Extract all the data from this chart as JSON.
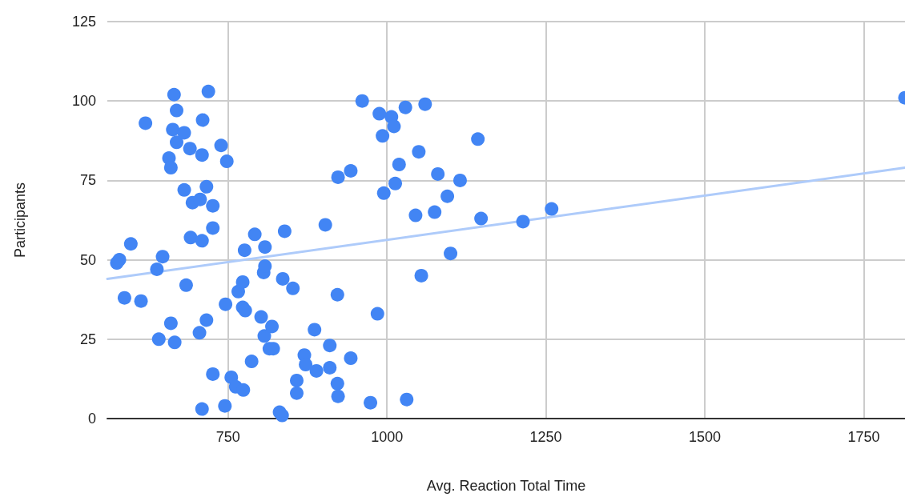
{
  "chart_data": {
    "type": "scatter",
    "xlabel": "Avg. Reaction Total Time",
    "ylabel": "Participants",
    "xlim": [
      560,
      1815
    ],
    "xticks": [
      750,
      1000,
      1250,
      1500,
      1750
    ],
    "ylim": [
      0,
      125
    ],
    "yticks": [
      0,
      25,
      50,
      75,
      100,
      125
    ],
    "grid": true,
    "series": [
      {
        "marker": "circle",
        "color": "#4285f4",
        "x": [
          575,
          579,
          587,
          597,
          613,
          620,
          638,
          641,
          647,
          657,
          660,
          660,
          665,
          663,
          669,
          669,
          666,
          681,
          681,
          684,
          690,
          691,
          694,
          705,
          706,
          709,
          710,
          709,
          709,
          716,
          716,
          719,
          726,
          726,
          726,
          739,
          746,
          745,
          748,
          755,
          762,
          766,
          773,
          773,
          774,
          777,
          776,
          787,
          792,
          802,
          806,
          808,
          808,
          807,
          815,
          819,
          821,
          831,
          835,
          836,
          839,
          852,
          858,
          858,
          870,
          872,
          886,
          889,
          903,
          910,
          910,
          922,
          922,
          923,
          923,
          943,
          943,
          974,
          961,
          985,
          988,
          993,
          995,
          1007,
          1011,
          1013,
          1019,
          1029,
          1031,
          1045,
          1050,
          1054,
          1060,
          1075,
          1080,
          1095,
          1100,
          1115,
          1143,
          1148,
          1214,
          1259,
          1815
        ],
        "values": [
          49,
          50,
          38,
          55,
          37,
          93,
          47,
          25,
          51,
          82,
          79,
          30,
          102,
          91,
          97,
          87,
          24,
          90,
          72,
          42,
          85,
          57,
          68,
          27,
          69,
          3,
          94,
          83,
          56,
          31,
          73,
          103,
          67,
          60,
          14,
          86,
          36,
          4,
          81,
          13,
          10,
          40,
          43,
          35,
          9,
          34,
          53,
          18,
          58,
          32,
          46,
          48,
          54,
          26,
          22,
          29,
          22,
          2,
          1,
          44,
          59,
          41,
          12,
          8,
          20,
          17,
          28,
          15,
          61,
          23,
          16,
          39,
          11,
          7,
          76,
          78,
          19,
          5,
          100,
          33,
          96,
          89,
          71,
          95,
          92,
          74,
          80,
          98,
          6,
          64,
          84,
          45,
          99,
          65,
          77,
          70,
          52,
          75,
          88,
          63,
          62,
          66,
          101
        ]
      },
      {
        "type": "line",
        "marker": "none",
        "color": "#aecbfa",
        "x": [
          560,
          1815
        ],
        "values": [
          44,
          79
        ]
      }
    ]
  }
}
